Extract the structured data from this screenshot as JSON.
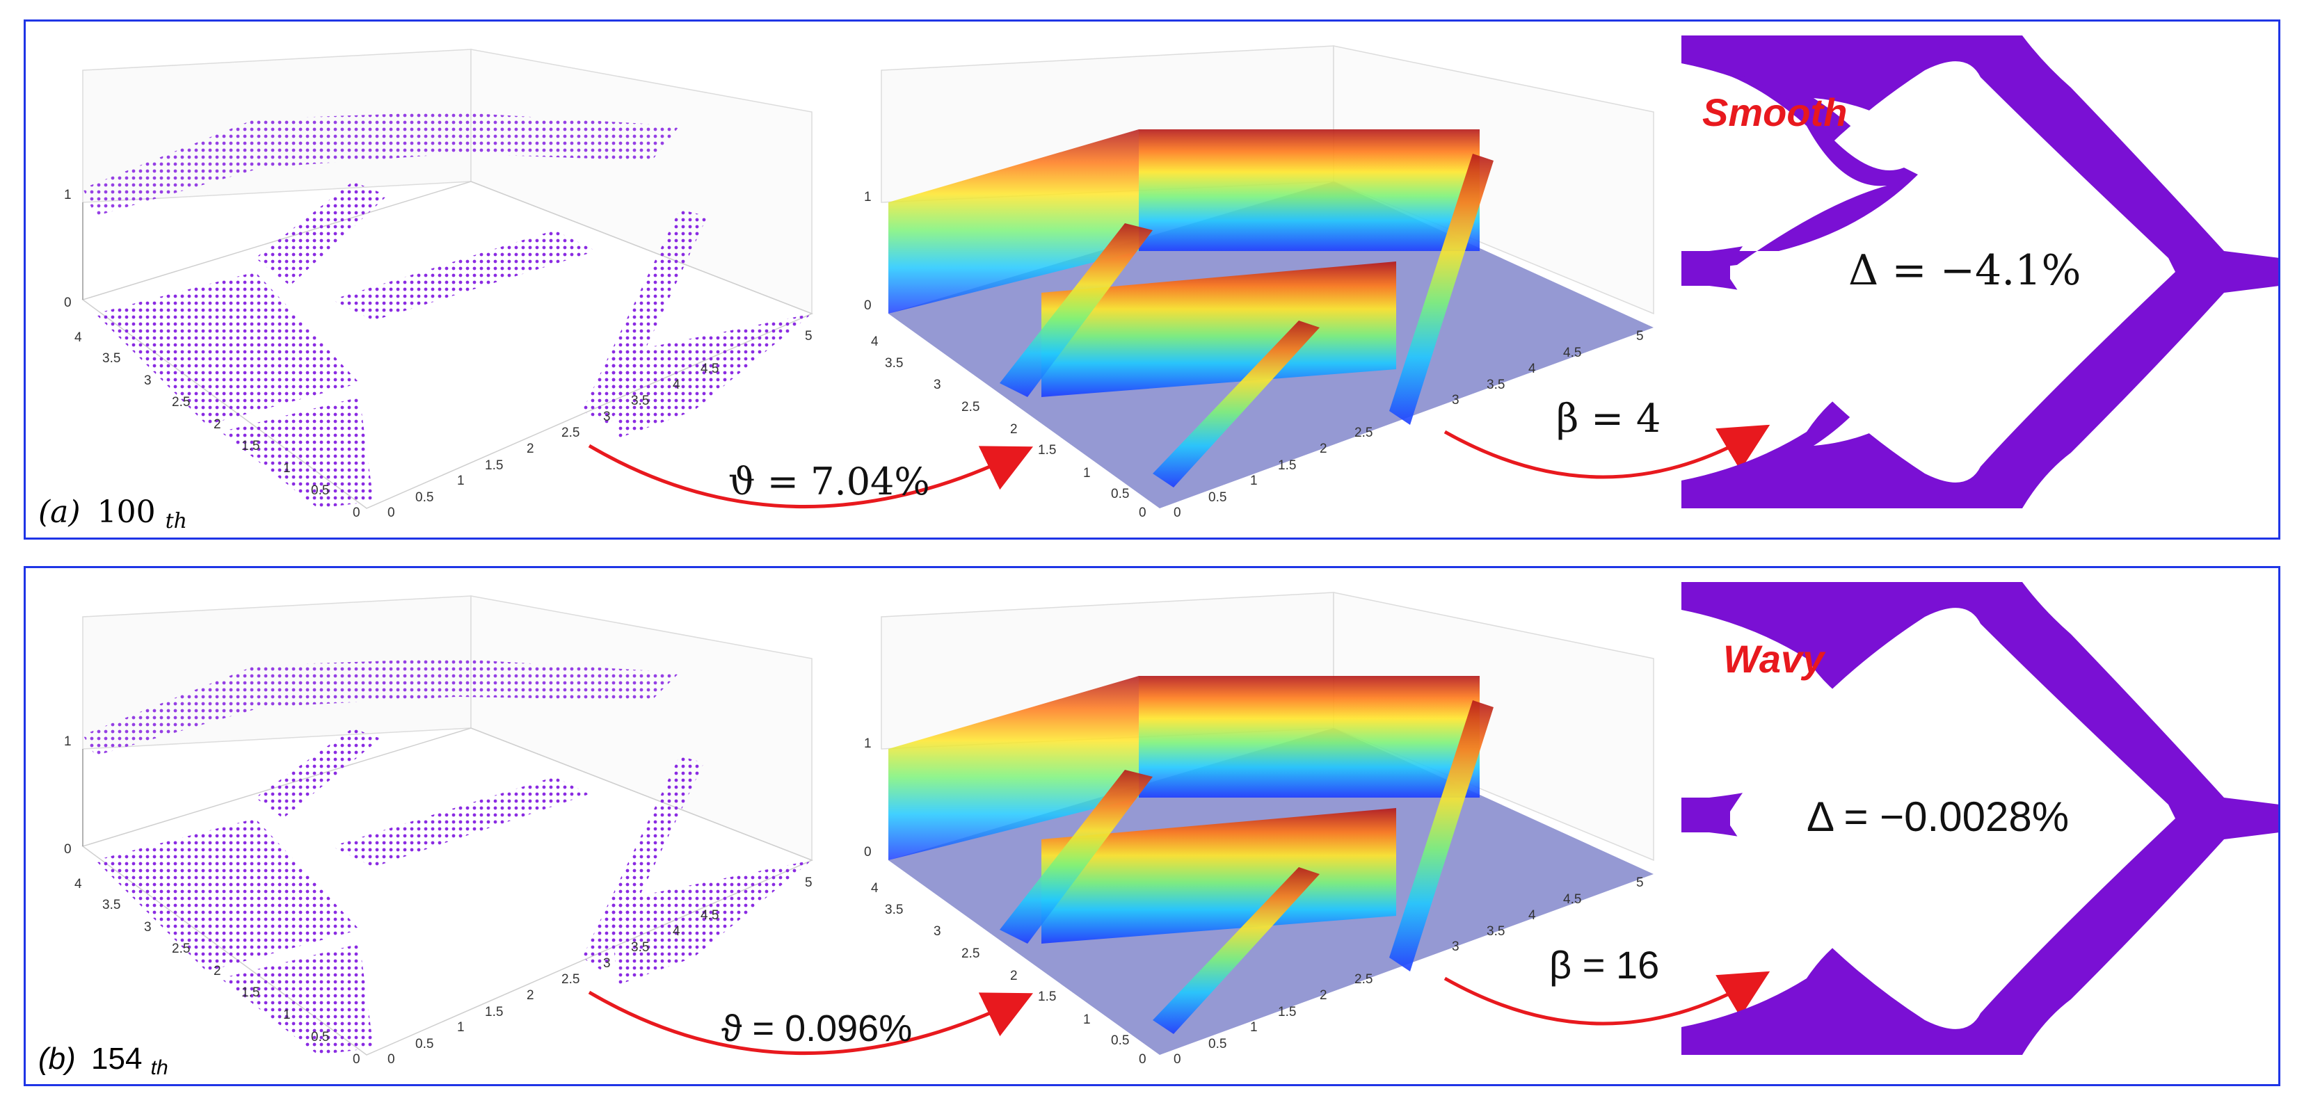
{
  "panels": [
    {
      "id": "a",
      "caption_letter": "(a)",
      "caption_number": "100",
      "caption_suffix": "th",
      "theta_text": "ϑ = 7.04%",
      "beta_text": "β = 4",
      "style_label": "Smooth",
      "delta_text": "Δ = −4.1%"
    },
    {
      "id": "b",
      "caption_letter": "(b)",
      "caption_number": "154",
      "caption_suffix": "th",
      "theta_text": "ϑ = 0.096%",
      "beta_text": "β = 16",
      "style_label": "Wavy",
      "delta_text": "Δ = −0.0028%"
    }
  ],
  "axes": {
    "z_ticks": [
      "0",
      "1"
    ],
    "y_ticks": [
      "0",
      "0.5",
      "1",
      "1.5",
      "2",
      "2.5",
      "3",
      "3.5",
      "4"
    ],
    "x_ticks": [
      "0",
      "0.5",
      "1",
      "1.5",
      "2",
      "2.5",
      "3",
      "3.5",
      "4",
      "4.5",
      "5"
    ]
  },
  "colors": {
    "frame": "#1f35e6",
    "points": "#8a2be2",
    "shape": "#7a10d4",
    "arrow": "#e8191e",
    "label": "#e8191e",
    "floor": "#7a80c8"
  }
}
